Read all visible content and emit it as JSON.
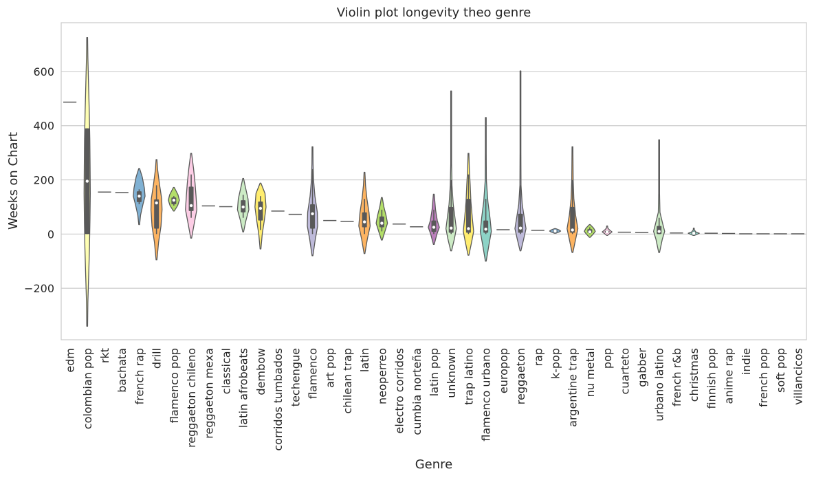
{
  "chart_data": {
    "type": "violin",
    "title": "Violin plot longevity theo genre",
    "xlabel": "Genre",
    "ylabel": "Weeks on Chart",
    "ylim": [
      -390,
      780
    ],
    "yticks": [
      -200,
      0,
      200,
      400,
      600
    ],
    "grid": true,
    "legend": "none",
    "categories": [
      "edm",
      "colombian pop",
      "rkt",
      "bachata",
      "french rap",
      "drill",
      "flamenco pop",
      "reggaeton chileno",
      "reggaeton mexa",
      "classical",
      "latin afrobeats",
      "dembow",
      "corridos tumbados",
      "techengue",
      "flamenco",
      "art pop",
      "chilean trap",
      "latin",
      "neoperreo",
      "electro corridos",
      "cumbia norteña",
      "latin pop",
      "unknown",
      "trap latino",
      "flamenco urbano",
      "europop",
      "reggaeton",
      "rap",
      "k-pop",
      "argentine trap",
      "nu metal",
      "pop",
      "cuarteto",
      "gabber",
      "urbano latino",
      "french r&b",
      "christmas",
      "finnish pop",
      "anime rap",
      "indie",
      "french pop",
      "soft pop",
      "villancicos"
    ],
    "colors": [
      "#8dd3c7",
      "#ffffb3",
      "#bebada",
      "#fb8072",
      "#80b1d3",
      "#fdb462",
      "#b3de69",
      "#fccde5",
      "#d9d9d9",
      "#bc80bd",
      "#ccebc5",
      "#ffed6f",
      "#8dd3c7",
      "#ffffb3",
      "#bebada",
      "#fb8072",
      "#80b1d3",
      "#fdb462",
      "#b3de69",
      "#fccde5",
      "#d9d9d9",
      "#bc80bd",
      "#ccebc5",
      "#ffed6f",
      "#8dd3c7",
      "#ffffb3",
      "#bebada",
      "#fb8072",
      "#80b1d3",
      "#fdb462",
      "#b3de69",
      "#fccde5",
      "#d9d9d9",
      "#bc80bd",
      "#ccebc5",
      "#ffed6f",
      "#8dd3c7",
      "#ffffb3",
      "#bebada",
      "#fb8072",
      "#80b1d3",
      "#fdb462",
      "#b3de69"
    ],
    "violins": [
      {
        "genre": "edm",
        "single": 487
      },
      {
        "genre": "colombian pop",
        "min": -340,
        "max": 725,
        "q1": 0,
        "median": 195,
        "q3": 390,
        "wlo": 0,
        "whi": 390,
        "profile": [
          [
            -340,
            0.02
          ],
          [
            -250,
            0.1
          ],
          [
            -150,
            0.22
          ],
          [
            -50,
            0.33
          ],
          [
            50,
            0.4
          ],
          [
            150,
            0.45
          ],
          [
            250,
            0.42
          ],
          [
            350,
            0.38
          ],
          [
            450,
            0.3
          ],
          [
            550,
            0.2
          ],
          [
            650,
            0.1
          ],
          [
            725,
            0.02
          ]
        ]
      },
      {
        "genre": "rkt",
        "single": 155
      },
      {
        "genre": "bachata",
        "single": 153
      },
      {
        "genre": "french rap",
        "min": 35,
        "max": 242,
        "q1": 118,
        "median": 140,
        "q3": 158,
        "wlo": 110,
        "whi": 165,
        "profile": [
          [
            35,
            0.03
          ],
          [
            70,
            0.2
          ],
          [
            110,
            0.55
          ],
          [
            140,
            0.85
          ],
          [
            170,
            0.75
          ],
          [
            210,
            0.45
          ],
          [
            242,
            0.06
          ]
        ]
      },
      {
        "genre": "drill",
        "min": -95,
        "max": 275,
        "q1": 20,
        "median": 115,
        "q3": 128,
        "wlo": 0,
        "whi": 180,
        "profile": [
          [
            -95,
            0.03
          ],
          [
            -30,
            0.3
          ],
          [
            30,
            0.65
          ],
          [
            90,
            0.8
          ],
          [
            130,
            0.75
          ],
          [
            180,
            0.45
          ],
          [
            240,
            0.15
          ],
          [
            275,
            0.02
          ]
        ]
      },
      {
        "genre": "flamenco pop",
        "min": 85,
        "max": 172,
        "q1": 110,
        "median": 125,
        "q3": 135,
        "wlo": 105,
        "whi": 140,
        "profile": [
          [
            85,
            0.05
          ],
          [
            105,
            0.55
          ],
          [
            125,
            0.8
          ],
          [
            145,
            0.6
          ],
          [
            172,
            0.04
          ]
        ]
      },
      {
        "genre": "reggaeton chileno",
        "min": -15,
        "max": 298,
        "q1": 85,
        "median": 105,
        "q3": 175,
        "wlo": 60,
        "whi": 220,
        "profile": [
          [
            -15,
            0.03
          ],
          [
            40,
            0.45
          ],
          [
            90,
            0.82
          ],
          [
            140,
            0.7
          ],
          [
            190,
            0.55
          ],
          [
            240,
            0.35
          ],
          [
            298,
            0.03
          ]
        ]
      },
      {
        "genre": "reggaeton mexa",
        "single": 104
      },
      {
        "genre": "classical",
        "single": 101
      },
      {
        "genre": "latin afrobeats",
        "min": 8,
        "max": 205,
        "q1": 80,
        "median": 100,
        "q3": 125,
        "wlo": 60,
        "whi": 145,
        "profile": [
          [
            8,
            0.03
          ],
          [
            50,
            0.4
          ],
          [
            90,
            0.82
          ],
          [
            130,
            0.7
          ],
          [
            170,
            0.35
          ],
          [
            205,
            0.03
          ]
        ]
      },
      {
        "genre": "dembow",
        "min": -55,
        "max": 188,
        "q1": 50,
        "median": 95,
        "q3": 120,
        "wlo": 15,
        "whi": 140,
        "profile": [
          [
            -55,
            0.03
          ],
          [
            0,
            0.25
          ],
          [
            50,
            0.55
          ],
          [
            100,
            0.8
          ],
          [
            150,
            0.65
          ],
          [
            188,
            0.04
          ]
        ]
      },
      {
        "genre": "corridos tumbados",
        "single": 85
      },
      {
        "genre": "techengue",
        "single": 73
      },
      {
        "genre": "flamenco",
        "min": -80,
        "max": 322,
        "q1": 20,
        "median": 75,
        "q3": 110,
        "wlo": 0,
        "whi": 240,
        "profile": [
          [
            -80,
            0.03
          ],
          [
            -20,
            0.4
          ],
          [
            30,
            0.75
          ],
          [
            80,
            0.7
          ],
          [
            140,
            0.35
          ],
          [
            200,
            0.15
          ],
          [
            260,
            0.08
          ],
          [
            322,
            0.02
          ]
        ]
      },
      {
        "genre": "art pop",
        "single": 50
      },
      {
        "genre": "chilean trap",
        "single": 47
      },
      {
        "genre": "latin",
        "min": -72,
        "max": 228,
        "q1": 25,
        "median": 45,
        "q3": 80,
        "wlo": 0,
        "whi": 130,
        "profile": [
          [
            -72,
            0.03
          ],
          [
            -20,
            0.4
          ],
          [
            30,
            0.82
          ],
          [
            80,
            0.65
          ],
          [
            130,
            0.35
          ],
          [
            180,
            0.15
          ],
          [
            228,
            0.02
          ]
        ]
      },
      {
        "genre": "neoperreo",
        "min": -22,
        "max": 135,
        "q1": 25,
        "median": 40,
        "q3": 65,
        "wlo": 10,
        "whi": 90,
        "profile": [
          [
            -22,
            0.03
          ],
          [
            10,
            0.45
          ],
          [
            40,
            0.82
          ],
          [
            70,
            0.6
          ],
          [
            100,
            0.3
          ],
          [
            135,
            0.03
          ]
        ]
      },
      {
        "genre": "electro corridos",
        "single": 37
      },
      {
        "genre": "cumbia norteña",
        "single": 27
      },
      {
        "genre": "latin pop",
        "min": -38,
        "max": 147,
        "q1": 8,
        "median": 25,
        "q3": 50,
        "wlo": 0,
        "whi": 90,
        "profile": [
          [
            -38,
            0.03
          ],
          [
            0,
            0.45
          ],
          [
            25,
            0.8
          ],
          [
            50,
            0.5
          ],
          [
            90,
            0.25
          ],
          [
            147,
            0.03
          ]
        ]
      },
      {
        "genre": "unknown",
        "min": -62,
        "max": 528,
        "q1": 5,
        "median": 22,
        "q3": 100,
        "wlo": 0,
        "whi": 200,
        "profile": [
          [
            -62,
            0.03
          ],
          [
            -20,
            0.45
          ],
          [
            20,
            0.75
          ],
          [
            60,
            0.55
          ],
          [
            110,
            0.3
          ],
          [
            180,
            0.12
          ],
          [
            260,
            0.05
          ],
          [
            400,
            0.02
          ],
          [
            528,
            0.01
          ]
        ]
      },
      {
        "genre": "trap latino",
        "min": -78,
        "max": 298,
        "q1": 5,
        "median": 20,
        "q3": 130,
        "wlo": 0,
        "whi": 220,
        "profile": [
          [
            -78,
            0.03
          ],
          [
            -30,
            0.45
          ],
          [
            10,
            0.75
          ],
          [
            60,
            0.55
          ],
          [
            120,
            0.35
          ],
          [
            180,
            0.25
          ],
          [
            240,
            0.12
          ],
          [
            298,
            0.02
          ]
        ]
      },
      {
        "genre": "flamenco urbano",
        "min": -100,
        "max": 430,
        "q1": 5,
        "median": 18,
        "q3": 50,
        "wlo": 0,
        "whi": 130,
        "profile": [
          [
            -100,
            0.03
          ],
          [
            -40,
            0.45
          ],
          [
            10,
            0.8
          ],
          [
            60,
            0.6
          ],
          [
            120,
            0.3
          ],
          [
            200,
            0.08
          ],
          [
            300,
            0.03
          ],
          [
            430,
            0.01
          ]
        ]
      },
      {
        "genre": "europop",
        "single": 16
      },
      {
        "genre": "reggaeton",
        "min": -62,
        "max": 602,
        "q1": 5,
        "median": 22,
        "q3": 75,
        "wlo": 0,
        "whi": 180,
        "profile": [
          [
            -62,
            0.03
          ],
          [
            -20,
            0.45
          ],
          [
            20,
            0.8
          ],
          [
            60,
            0.55
          ],
          [
            110,
            0.25
          ],
          [
            180,
            0.08
          ],
          [
            300,
            0.03
          ],
          [
            602,
            0.01
          ]
        ]
      },
      {
        "genre": "rap",
        "single": 14
      },
      {
        "genre": "k-pop",
        "min": 3,
        "max": 20,
        "q1": 8,
        "median": 11,
        "q3": 14,
        "wlo": 5,
        "whi": 17,
        "profile": [
          [
            3,
            0.1
          ],
          [
            8,
            0.6
          ],
          [
            11,
            0.8
          ],
          [
            15,
            0.6
          ],
          [
            20,
            0.1
          ]
        ]
      },
      {
        "genre": "argentine trap",
        "min": -68,
        "max": 322,
        "q1": 5,
        "median": 15,
        "q3": 100,
        "wlo": 0,
        "whi": 200,
        "profile": [
          [
            -68,
            0.03
          ],
          [
            -20,
            0.45
          ],
          [
            20,
            0.78
          ],
          [
            70,
            0.45
          ],
          [
            130,
            0.2
          ],
          [
            200,
            0.1
          ],
          [
            322,
            0.01
          ]
        ]
      },
      {
        "genre": "nu metal",
        "min": -12,
        "max": 35,
        "q1": 4,
        "median": 8,
        "q3": 18,
        "wlo": 0,
        "whi": 25,
        "profile": [
          [
            -12,
            0.05
          ],
          [
            0,
            0.5
          ],
          [
            10,
            0.8
          ],
          [
            22,
            0.55
          ],
          [
            35,
            0.05
          ]
        ]
      },
      {
        "genre": "pop",
        "min": -5,
        "max": 30,
        "q1": 5,
        "median": 8,
        "q3": 12,
        "wlo": 2,
        "whi": 15,
        "profile": [
          [
            -5,
            0.05
          ],
          [
            3,
            0.45
          ],
          [
            8,
            0.7
          ],
          [
            15,
            0.35
          ],
          [
            22,
            0.1
          ],
          [
            30,
            0.03
          ]
        ]
      },
      {
        "genre": "cuarteto",
        "single": 7
      },
      {
        "genre": "gabber",
        "single": 6
      },
      {
        "genre": "urbano latino",
        "min": -68,
        "max": 348,
        "q1": 0,
        "median": 10,
        "q3": 30,
        "wlo": 0,
        "whi": 60,
        "profile": [
          [
            -68,
            0.03
          ],
          [
            -20,
            0.45
          ],
          [
            10,
            0.8
          ],
          [
            40,
            0.5
          ],
          [
            80,
            0.12
          ],
          [
            150,
            0.03
          ],
          [
            348,
            0.01
          ]
        ]
      },
      {
        "genre": "french r&b",
        "single": 4
      },
      {
        "genre": "christmas",
        "min": -5,
        "max": 22,
        "q1": 1,
        "median": 3,
        "q3": 6,
        "wlo": 0,
        "whi": 10,
        "profile": [
          [
            -5,
            0.1
          ],
          [
            0,
            0.55
          ],
          [
            3,
            0.8
          ],
          [
            8,
            0.3
          ],
          [
            15,
            0.08
          ],
          [
            22,
            0.03
          ]
        ]
      },
      {
        "genre": "finnish pop",
        "single": 3
      },
      {
        "genre": "anime rap",
        "single": 2
      },
      {
        "genre": "indie",
        "single": 1
      },
      {
        "genre": "french pop",
        "single": 1
      },
      {
        "genre": "soft pop",
        "single": 1
      },
      {
        "genre": "villancicos",
        "single": 1
      }
    ]
  }
}
